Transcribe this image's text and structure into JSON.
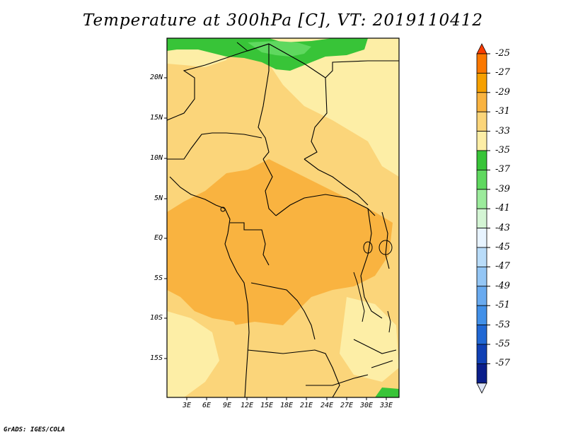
{
  "title": "Temperature at 300hPa [C], VT: 2019110412",
  "credit": "GrADS: IGES/COLA",
  "map": {
    "lat_labels": [
      "20N",
      "15N",
      "10N",
      "5N",
      "EQ",
      "5S",
      "10S",
      "15S"
    ],
    "lon_labels": [
      "3E",
      "6E",
      "9E",
      "12E",
      "15E",
      "18E",
      "21E",
      "24E",
      "27E",
      "30E",
      "33E"
    ]
  },
  "colorbar": {
    "labels": [
      "-25",
      "-27",
      "-29",
      "-31",
      "-33",
      "-35",
      "-37",
      "-39",
      "-41",
      "-43",
      "-45",
      "-47",
      "-49",
      "-51",
      "-53",
      "-55",
      "-57"
    ],
    "colors": [
      "#fa3c00",
      "#fb7800",
      "#f6a000",
      "#f9b340",
      "#fbd57a",
      "#fdeea6",
      "#38c438",
      "#5fd85f",
      "#9ceb9c",
      "#d4f5d4",
      "#e8f4ff",
      "#b9dcf9",
      "#94c6f5",
      "#69aaef",
      "#4290e8",
      "#2168d4",
      "#1040b4",
      "#0a1e8a",
      "#dde4f5"
    ]
  }
}
